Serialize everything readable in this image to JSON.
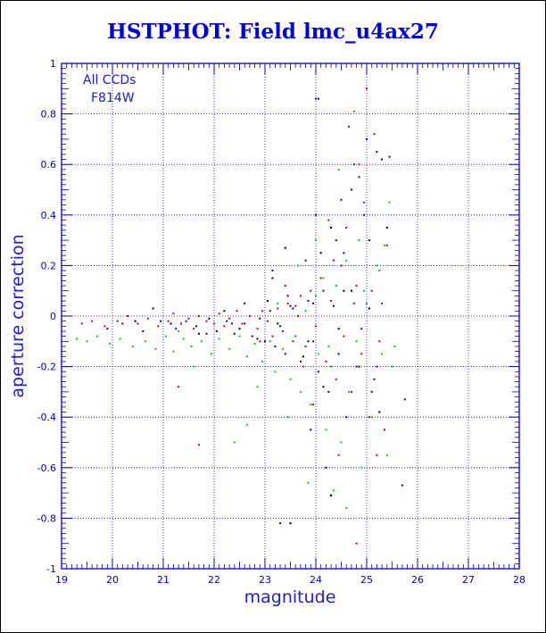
{
  "chart_data": {
    "type": "scatter",
    "title": "HSTPHOT: Field lmc_u4ax27",
    "xlabel": "magnitude",
    "ylabel": "aperture correction",
    "xlim": [
      19,
      28
    ],
    "ylim": [
      -1,
      1
    ],
    "xticks": [
      "19",
      "20",
      "21",
      "22",
      "23",
      "24",
      "25",
      "26",
      "27",
      "28"
    ],
    "yticks": [
      "-1",
      "-0.8",
      "-0.6",
      "-0.4",
      "-0.2",
      "0",
      "0.2",
      "0.4",
      "0.6",
      "0.8",
      "1"
    ],
    "grid": true,
    "annotations": [
      "All CCDs",
      "F814W"
    ],
    "series": [
      {
        "color": "#d00000",
        "points": [
          [
            19.4,
            -0.03
          ],
          [
            19.6,
            -0.02
          ],
          [
            19.85,
            -0.04
          ],
          [
            20.1,
            -0.02
          ],
          [
            20.3,
            0.0
          ],
          [
            20.5,
            -0.03
          ],
          [
            20.7,
            -0.01
          ],
          [
            20.9,
            -0.04
          ],
          [
            21.1,
            -0.02
          ],
          [
            21.2,
            0.01
          ],
          [
            21.35,
            -0.03
          ],
          [
            21.5,
            -0.01
          ],
          [
            21.6,
            -0.05
          ],
          [
            21.7,
            0.0
          ],
          [
            21.85,
            -0.02
          ],
          [
            22.0,
            -0.03
          ],
          [
            22.1,
            0.01
          ],
          [
            22.2,
            -0.04
          ],
          [
            22.3,
            -0.01
          ],
          [
            22.45,
            0.02
          ],
          [
            22.55,
            -0.03
          ],
          [
            22.7,
            0.0
          ],
          [
            22.85,
            -0.05
          ],
          [
            22.95,
            0.02
          ],
          [
            23.05,
            -0.02
          ],
          [
            23.15,
            -0.08
          ],
          [
            23.25,
            0.03
          ],
          [
            23.35,
            -0.06
          ],
          [
            23.45,
            0.05
          ],
          [
            23.55,
            -0.1
          ],
          [
            23.65,
            0.0
          ],
          [
            23.7,
            0.08
          ],
          [
            23.8,
            -0.12
          ],
          [
            23.9,
            0.1
          ],
          [
            24.0,
            -0.04
          ],
          [
            24.1,
            0.15
          ],
          [
            24.2,
            -0.18
          ],
          [
            24.3,
            0.06
          ],
          [
            24.4,
            -0.25
          ],
          [
            24.5,
            0.2
          ],
          [
            24.55,
            -0.08
          ],
          [
            24.6,
            0.35
          ],
          [
            24.65,
            0.75
          ],
          [
            24.7,
            -0.3
          ],
          [
            24.8,
            0.12
          ],
          [
            24.9,
            -0.15
          ],
          [
            24.95,
            0.45
          ],
          [
            25.0,
            0.9
          ],
          [
            25.05,
            -0.4
          ],
          [
            25.1,
            0.1
          ],
          [
            25.15,
            0.72
          ],
          [
            25.2,
            -0.2
          ],
          [
            25.3,
            0.05
          ],
          [
            25.35,
            -0.45
          ],
          [
            25.4,
            0.28
          ],
          [
            25.2,
            -0.55
          ],
          [
            24.8,
            -0.9
          ],
          [
            21.3,
            -0.28
          ],
          [
            21.7,
            -0.51
          ],
          [
            23.6,
            0.04
          ],
          [
            24.25,
            0.38
          ],
          [
            24.45,
            -0.55
          ],
          [
            23.95,
            -0.35
          ],
          [
            24.85,
            0.6
          ],
          [
            25.25,
            -0.1
          ],
          [
            23.4,
            0.12
          ],
          [
            22.9,
            -0.1
          ],
          [
            23.75,
            -0.2
          ],
          [
            24.35,
            0.22
          ],
          [
            24.75,
            0.05
          ]
        ]
      },
      {
        "color": "#0000c0",
        "points": [
          [
            19.9,
            -0.05
          ],
          [
            20.2,
            -0.03
          ],
          [
            20.6,
            -0.06
          ],
          [
            20.95,
            -0.02
          ],
          [
            21.25,
            -0.05
          ],
          [
            21.45,
            -0.02
          ],
          [
            21.65,
            -0.04
          ],
          [
            21.9,
            -0.01
          ],
          [
            22.05,
            -0.06
          ],
          [
            22.25,
            -0.02
          ],
          [
            22.4,
            -0.07
          ],
          [
            22.6,
            -0.03
          ],
          [
            22.75,
            -0.08
          ],
          [
            22.9,
            -0.01
          ],
          [
            23.0,
            -0.1
          ],
          [
            23.1,
            0.02
          ],
          [
            23.2,
            -0.12
          ],
          [
            23.3,
            -0.04
          ],
          [
            23.4,
            -0.15
          ],
          [
            23.5,
            0.04
          ],
          [
            23.6,
            -0.08
          ],
          [
            23.7,
            -0.18
          ],
          [
            23.85,
            0.06
          ],
          [
            23.95,
            -0.1
          ],
          [
            24.0,
            0.86
          ],
          [
            24.05,
            -0.22
          ],
          [
            24.15,
            0.1
          ],
          [
            24.25,
            -0.3
          ],
          [
            24.35,
            0.04
          ],
          [
            24.45,
            -0.15
          ],
          [
            24.55,
            0.25
          ],
          [
            24.6,
            -0.4
          ],
          [
            24.7,
            0.5
          ],
          [
            24.75,
            0.6
          ],
          [
            24.8,
            -0.2
          ],
          [
            24.85,
            0.55
          ],
          [
            24.9,
            -0.05
          ],
          [
            25.0,
            0.7
          ],
          [
            25.05,
            0.3
          ],
          [
            25.1,
            -0.3
          ],
          [
            25.2,
            0.65
          ],
          [
            25.3,
            0.62
          ],
          [
            25.45,
            0.63
          ],
          [
            25.75,
            -0.33
          ],
          [
            25.7,
            -0.67
          ],
          [
            23.3,
            -0.82
          ],
          [
            24.3,
            -0.71
          ],
          [
            24.0,
            0.4
          ],
          [
            23.45,
            0.08
          ],
          [
            22.6,
            0.05
          ],
          [
            23.15,
            0.18
          ],
          [
            24.5,
            0.46
          ],
          [
            24.2,
            -0.6
          ],
          [
            24.95,
            0.4
          ],
          [
            23.8,
            0.22
          ],
          [
            24.4,
            0.3
          ],
          [
            23.9,
            -0.45
          ],
          [
            25.15,
            -0.25
          ],
          [
            22.35,
            -0.03
          ],
          [
            21.85,
            -0.07
          ]
        ]
      },
      {
        "color": "#00d000",
        "points": [
          [
            19.3,
            -0.09
          ],
          [
            19.5,
            -0.1
          ],
          [
            19.7,
            -0.08
          ],
          [
            19.95,
            -0.11
          ],
          [
            20.15,
            -0.09
          ],
          [
            20.4,
            -0.12
          ],
          [
            20.65,
            -0.1
          ],
          [
            20.85,
            -0.13
          ],
          [
            21.05,
            -0.08
          ],
          [
            21.2,
            -0.14
          ],
          [
            21.4,
            -0.09
          ],
          [
            21.55,
            -0.12
          ],
          [
            21.75,
            -0.1
          ],
          [
            21.95,
            -0.15
          ],
          [
            22.1,
            -0.09
          ],
          [
            22.3,
            -0.13
          ],
          [
            22.5,
            -0.08
          ],
          [
            22.65,
            -0.16
          ],
          [
            22.8,
            -0.11
          ],
          [
            22.95,
            -0.18
          ],
          [
            23.1,
            -0.1
          ],
          [
            23.2,
            -0.22
          ],
          [
            23.35,
            -0.13
          ],
          [
            23.5,
            -0.25
          ],
          [
            23.6,
            -0.08
          ],
          [
            23.7,
            -0.3
          ],
          [
            23.8,
            0.02
          ],
          [
            23.9,
            -0.35
          ],
          [
            24.0,
            0.08
          ],
          [
            24.05,
            -0.15
          ],
          [
            24.15,
            0.15
          ],
          [
            24.2,
            -0.45
          ],
          [
            24.3,
            -0.2
          ],
          [
            24.4,
            0.12
          ],
          [
            24.5,
            -0.5
          ],
          [
            24.6,
            0.22
          ],
          [
            24.65,
            -0.3
          ],
          [
            24.75,
            0.81
          ],
          [
            24.8,
            -0.1
          ],
          [
            24.85,
            0.3
          ],
          [
            24.9,
            -0.6
          ],
          [
            25.0,
            0.05
          ],
          [
            25.1,
            -0.4
          ],
          [
            25.2,
            0.2
          ],
          [
            25.3,
            -0.15
          ],
          [
            25.35,
            0.28
          ],
          [
            25.4,
            -0.55
          ],
          [
            25.45,
            0.45
          ],
          [
            25.5,
            -0.2
          ],
          [
            25.55,
            -0.12
          ],
          [
            24.6,
            -0.76
          ],
          [
            24.35,
            -0.69
          ],
          [
            23.85,
            -0.66
          ],
          [
            22.65,
            -0.43
          ],
          [
            22.4,
            -0.5
          ],
          [
            23.65,
            0.2
          ],
          [
            24.45,
            0.58
          ],
          [
            21.6,
            -0.2
          ],
          [
            23.25,
            0.05
          ],
          [
            24.0,
            0.3
          ],
          [
            22.85,
            -0.28
          ],
          [
            23.45,
            -0.4
          ],
          [
            24.25,
            -0.12
          ],
          [
            24.95,
            0.1
          ],
          [
            25.25,
            0.18
          ],
          [
            21.3,
            -0.06
          ]
        ]
      },
      {
        "color": "#000000",
        "points": [
          [
            20.45,
            -0.02
          ],
          [
            20.8,
            0.03
          ],
          [
            21.15,
            -0.03
          ],
          [
            21.7,
            -0.07
          ],
          [
            22.2,
            0.02
          ],
          [
            22.5,
            -0.05
          ],
          [
            22.85,
            -0.09
          ],
          [
            23.05,
            0.06
          ],
          [
            23.25,
            -0.03
          ],
          [
            23.4,
            0.27
          ],
          [
            23.55,
            0.03
          ],
          [
            23.75,
            -0.16
          ],
          [
            23.95,
            0.05
          ],
          [
            24.05,
            0.86
          ],
          [
            24.15,
            -0.28
          ],
          [
            24.3,
            0.35
          ],
          [
            24.45,
            -0.05
          ],
          [
            24.55,
            0.1
          ],
          [
            24.7,
            0.1
          ],
          [
            24.85,
            -0.2
          ],
          [
            25.05,
            0.03
          ],
          [
            25.25,
            -0.38
          ],
          [
            25.4,
            0.35
          ],
          [
            23.5,
            -0.82
          ],
          [
            24.3,
            -0.71
          ],
          [
            23.15,
            0.15
          ],
          [
            24.1,
            0.25
          ],
          [
            23.85,
            -0.1
          ]
        ]
      }
    ]
  }
}
